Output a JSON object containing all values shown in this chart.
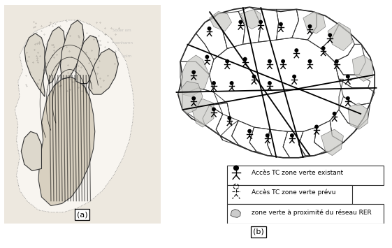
{
  "figure_width": 5.61,
  "figure_height": 3.55,
  "dpi": 100,
  "background_color": "#ffffff",
  "label_a": "(a)",
  "label_b": "(b)",
  "legend_items": [
    {
      "text": "Accès TC zone verte existant"
    },
    {
      "text": "Accès TC zone verte prévu"
    },
    {
      "text": "zone verte à proximité du réseau RER"
    }
  ],
  "text_color": "#000000",
  "legend_fontsize": 6.5,
  "label_fontsize": 8
}
